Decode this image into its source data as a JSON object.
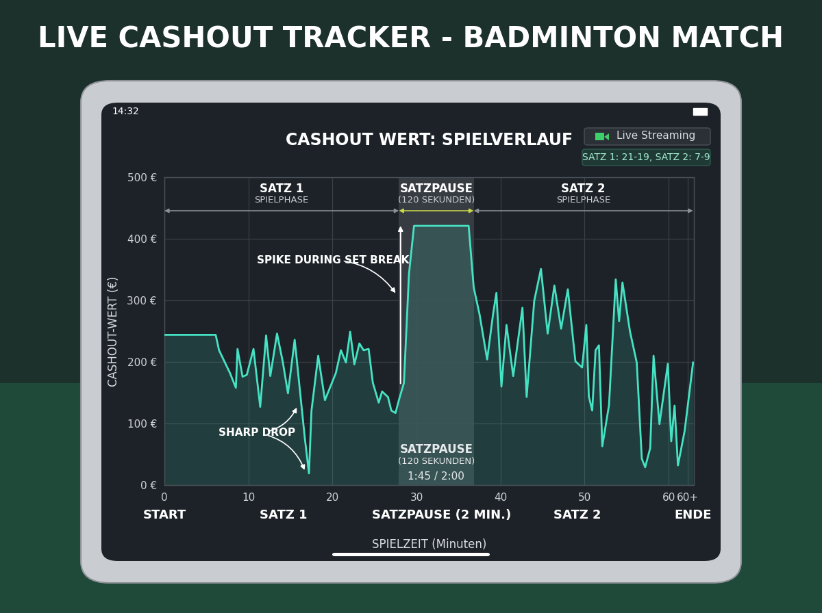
{
  "screen": {
    "title": "LIVE CASHOUT TRACKER - BADMINTON MATCH",
    "time": "14:32",
    "button": "Live Streaming",
    "score": "SATZ 1: 21-19, SATZ 2: 7-9"
  },
  "chart_data": {
    "type": "line",
    "title": "CASHOUT WERT: SPIELVERLAUF",
    "x_label": "SPIELZEIT (Minuten)",
    "y_label": "CASHOUT-WERT (€)",
    "x": [
      0,
      6.1,
      6.5,
      7.8,
      8.5,
      8.7,
      9.3,
      9.8,
      10.6,
      11.4,
      12.1,
      12.6,
      13.4,
      14.1,
      14.7,
      15.5,
      15.7,
      16.7,
      17.2,
      17.5,
      18.3,
      19.1,
      20.4,
      21.0,
      21.6,
      22.1,
      22.6,
      23.2,
      23.7,
      24.3,
      24.8,
      25.5,
      25.9,
      26.6,
      27.0,
      27.5,
      27.9,
      28.5,
      29.1,
      29.7,
      36.2,
      36.8,
      37.5,
      38.4,
      39.1,
      39.5,
      40.1,
      40.7,
      41.5,
      42.6,
      43.1,
      44.0,
      44.8,
      45.6,
      46.4,
      47.2,
      48.0,
      48.9,
      49.7,
      50.2,
      50.5,
      50.9,
      51.3,
      51.7,
      52.1,
      52.9,
      53.7,
      54.1,
      54.5,
      55.4,
      56.2,
      56.8,
      57.2,
      57.8,
      58.2,
      58.9,
      59.9,
      60.3,
      60.7,
      61.1,
      61.9,
      62.9
    ],
    "values": [
      244,
      244,
      219,
      182,
      158,
      221,
      176,
      179,
      221,
      127,
      243,
      177,
      246,
      199,
      149,
      236,
      210,
      77,
      19,
      121,
      210,
      138,
      182,
      219,
      199,
      249,
      196,
      230,
      219,
      221,
      166,
      134,
      152,
      143,
      121,
      117,
      138,
      166,
      343,
      421,
      421,
      321,
      277,
      204,
      277,
      312,
      160,
      260,
      177,
      288,
      143,
      299,
      351,
      246,
      324,
      254,
      318,
      201,
      191,
      260,
      144,
      121,
      219,
      227,
      63,
      130,
      334,
      266,
      329,
      249,
      199,
      43,
      29,
      60,
      210,
      99,
      197,
      71,
      129,
      32,
      88,
      199
    ],
    "color": "#45e3c4",
    "xlim": [
      0,
      63
    ],
    "xticks": [
      0,
      10,
      20,
      30,
      40,
      50,
      60,
      {
        "value": 62.3,
        "label": "60+"
      }
    ],
    "ylim": [
      0,
      500
    ],
    "yticks": [
      {
        "value": 0,
        "label": "0 €"
      },
      {
        "value": 100,
        "label": "100 €"
      },
      {
        "value": 200,
        "label": "200 €"
      },
      {
        "value": 300,
        "label": "300 €"
      },
      {
        "value": 400,
        "label": "400 €"
      },
      {
        "value": 500,
        "label": "500 €"
      }
    ],
    "grid": true,
    "phases": [
      {
        "name": "SATZ 1",
        "sub": "SPIELPHASE",
        "x": [
          0,
          27.9
        ]
      },
      {
        "name": "SATZPAUSE",
        "sub": "(120 SEKUNDEN)",
        "x": [
          27.9,
          36.8
        ]
      },
      {
        "name": "SATZ 2",
        "sub": "SPIELPHASE",
        "x": [
          36.8,
          62.9
        ]
      }
    ],
    "break_region": {
      "x": [
        27.9,
        36.8
      ],
      "color": "#3a3f45",
      "texts": [
        "SATZPAUSE",
        "(120 SEKUNDEN)",
        "1:45 / 2:00"
      ]
    },
    "x_sections": [
      {
        "label": "START",
        "x": 0
      },
      {
        "label": "SATZ 1",
        "x": 14.2
      },
      {
        "label": "SATZPAUSE (2 MIN.)",
        "x": 33
      },
      {
        "label": "SATZ 2",
        "x": 49.1
      },
      {
        "label": "ENDE",
        "x": 62.9
      }
    ],
    "annotations": [
      {
        "text": "SPIKE DURING SET BREAK",
        "points": [
          [
            27.7,
            308
          ]
        ]
      },
      {
        "text": "SHARP DROP",
        "points": [
          [
            15.9,
            130
          ],
          [
            16.8,
            20
          ]
        ]
      }
    ],
    "spike_arrow": [
      [
        28.1,
        165
      ],
      [
        28.1,
        421
      ]
    ]
  }
}
